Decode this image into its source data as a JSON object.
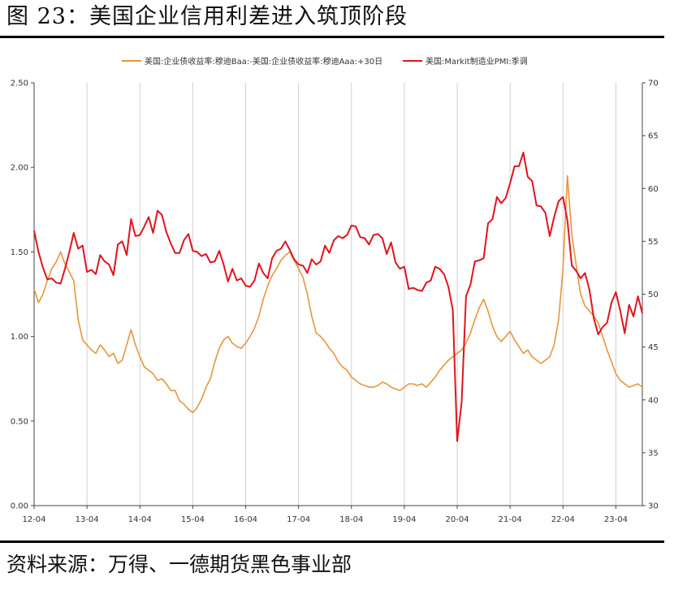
{
  "header": {
    "title": "图 23：美国企业信用利差进入筑顶阶段"
  },
  "footer": {
    "source": "资料来源：万得、一德期货黑色事业部"
  },
  "colors": {
    "spread": "#E8953A",
    "pmi": "#E0141E",
    "grid": "#D0D0D0",
    "axis": "#444444"
  },
  "chart_data": {
    "type": "line",
    "title": "",
    "legend_position": "top",
    "x_ticks": [
      "12-04",
      "13-04",
      "14-04",
      "15-04",
      "16-04",
      "17-04",
      "18-04",
      "19-04",
      "20-04",
      "21-04",
      "22-04",
      "23-04"
    ],
    "x_range": [
      "2012-04",
      "2023-10"
    ],
    "y_left": {
      "range": [
        0.0,
        2.5
      ],
      "ticks": [
        "0.00",
        "0.50",
        "1.00",
        "1.50",
        "2.00",
        "2.50"
      ]
    },
    "y_right": {
      "range": [
        30,
        70
      ],
      "ticks": [
        "30",
        "35",
        "40",
        "45",
        "50",
        "55",
        "60",
        "65",
        "70"
      ]
    },
    "grid": "vertical",
    "series": [
      {
        "name": "美国:企业债收益率:穆迪Baa:-美国:企业债收益率:穆迪Aaa:+30日",
        "axis": "left",
        "points": [
          [
            "2012-04",
            1.28
          ],
          [
            "2012-05",
            1.2
          ],
          [
            "2012-06",
            1.25
          ],
          [
            "2012-07",
            1.33
          ],
          [
            "2012-08",
            1.4
          ],
          [
            "2012-09",
            1.44
          ],
          [
            "2012-10",
            1.5
          ],
          [
            "2012-11",
            1.43
          ],
          [
            "2012-12",
            1.38
          ],
          [
            "2013-01",
            1.33
          ],
          [
            "2013-02",
            1.1
          ],
          [
            "2013-03",
            0.98
          ],
          [
            "2013-04",
            0.95
          ],
          [
            "2013-05",
            0.92
          ],
          [
            "2013-06",
            0.9
          ],
          [
            "2013-07",
            0.95
          ],
          [
            "2013-08",
            0.92
          ],
          [
            "2013-09",
            0.88
          ],
          [
            "2013-10",
            0.9
          ],
          [
            "2013-11",
            0.84
          ],
          [
            "2013-12",
            0.86
          ],
          [
            "2014-01",
            0.95
          ],
          [
            "2014-02",
            1.04
          ],
          [
            "2014-03",
            0.95
          ],
          [
            "2014-04",
            0.88
          ],
          [
            "2014-05",
            0.82
          ],
          [
            "2014-06",
            0.8
          ],
          [
            "2014-07",
            0.78
          ],
          [
            "2014-08",
            0.74
          ],
          [
            "2014-09",
            0.75
          ],
          [
            "2014-10",
            0.72
          ],
          [
            "2014-11",
            0.68
          ],
          [
            "2014-12",
            0.68
          ],
          [
            "2015-01",
            0.62
          ],
          [
            "2015-02",
            0.6
          ],
          [
            "2015-03",
            0.57
          ],
          [
            "2015-04",
            0.55
          ],
          [
            "2015-05",
            0.58
          ],
          [
            "2015-06",
            0.63
          ],
          [
            "2015-07",
            0.7
          ],
          [
            "2015-08",
            0.75
          ],
          [
            "2015-09",
            0.85
          ],
          [
            "2015-10",
            0.93
          ],
          [
            "2015-11",
            0.98
          ],
          [
            "2015-12",
            1.0
          ],
          [
            "2016-01",
            0.96
          ],
          [
            "2016-02",
            0.94
          ],
          [
            "2016-03",
            0.93
          ],
          [
            "2016-04",
            0.96
          ],
          [
            "2016-05",
            1.0
          ],
          [
            "2016-06",
            1.05
          ],
          [
            "2016-07",
            1.12
          ],
          [
            "2016-08",
            1.22
          ],
          [
            "2016-09",
            1.3
          ],
          [
            "2016-10",
            1.36
          ],
          [
            "2016-11",
            1.4
          ],
          [
            "2016-12",
            1.45
          ],
          [
            "2017-01",
            1.48
          ],
          [
            "2017-02",
            1.5
          ],
          [
            "2017-03",
            1.45
          ],
          [
            "2017-04",
            1.4
          ],
          [
            "2017-05",
            1.35
          ],
          [
            "2017-06",
            1.25
          ],
          [
            "2017-07",
            1.12
          ],
          [
            "2017-08",
            1.02
          ],
          [
            "2017-09",
            1.0
          ],
          [
            "2017-10",
            0.97
          ],
          [
            "2017-11",
            0.93
          ],
          [
            "2017-12",
            0.9
          ],
          [
            "2018-01",
            0.85
          ],
          [
            "2018-02",
            0.82
          ],
          [
            "2018-03",
            0.8
          ],
          [
            "2018-04",
            0.76
          ],
          [
            "2018-05",
            0.74
          ],
          [
            "2018-06",
            0.72
          ],
          [
            "2018-07",
            0.71
          ],
          [
            "2018-08",
            0.7
          ],
          [
            "2018-09",
            0.7
          ],
          [
            "2018-10",
            0.71
          ],
          [
            "2018-11",
            0.73
          ],
          [
            "2018-12",
            0.72
          ],
          [
            "2019-01",
            0.7
          ],
          [
            "2019-02",
            0.69
          ],
          [
            "2019-03",
            0.68
          ],
          [
            "2019-04",
            0.7
          ],
          [
            "2019-05",
            0.72
          ],
          [
            "2019-06",
            0.72
          ],
          [
            "2019-07",
            0.71
          ],
          [
            "2019-08",
            0.72
          ],
          [
            "2019-09",
            0.7
          ],
          [
            "2019-10",
            0.73
          ],
          [
            "2019-11",
            0.76
          ],
          [
            "2019-12",
            0.8
          ],
          [
            "2020-01",
            0.83
          ],
          [
            "2020-02",
            0.86
          ],
          [
            "2020-03",
            0.88
          ],
          [
            "2020-04",
            0.9
          ],
          [
            "2020-05",
            0.92
          ],
          [
            "2020-06",
            0.96
          ],
          [
            "2020-07",
            1.02
          ],
          [
            "2020-08",
            1.1
          ],
          [
            "2020-09",
            1.17
          ],
          [
            "2020-10",
            1.22
          ],
          [
            "2020-11",
            1.15
          ],
          [
            "2020-12",
            1.06
          ],
          [
            "2021-01",
            1.0
          ],
          [
            "2021-02",
            0.97
          ],
          [
            "2021-03",
            1.0
          ],
          [
            "2021-04",
            1.03
          ],
          [
            "2021-05",
            0.98
          ],
          [
            "2021-06",
            0.94
          ],
          [
            "2021-07",
            0.9
          ],
          [
            "2021-08",
            0.92
          ],
          [
            "2021-09",
            0.88
          ],
          [
            "2021-10",
            0.86
          ],
          [
            "2021-11",
            0.84
          ],
          [
            "2021-12",
            0.86
          ],
          [
            "2022-01",
            0.88
          ],
          [
            "2022-02",
            0.95
          ],
          [
            "2022-03",
            1.1
          ],
          [
            "2022-04",
            1.4
          ],
          [
            "2022-05",
            1.95
          ],
          [
            "2022-06",
            1.6
          ],
          [
            "2022-07",
            1.42
          ],
          [
            "2022-08",
            1.25
          ],
          [
            "2022-09",
            1.18
          ],
          [
            "2022-10",
            1.15
          ],
          [
            "2022-11",
            1.12
          ],
          [
            "2022-12",
            1.08
          ],
          [
            "2023-01",
            1.0
          ],
          [
            "2023-02",
            0.92
          ],
          [
            "2023-03",
            0.85
          ],
          [
            "2023-04",
            0.78
          ],
          [
            "2023-05",
            0.74
          ],
          [
            "2023-06",
            0.72
          ],
          [
            "2023-07",
            0.7
          ],
          [
            "2023-08",
            0.71
          ],
          [
            "2023-09",
            0.72
          ],
          [
            "2023-10",
            0.7
          ]
        ]
      },
      {
        "name": "美国:Markit制造业PMI:季调",
        "axis": "right",
        "points": [
          [
            "2012-04",
            56.0
          ],
          [
            "2012-05",
            54.0
          ],
          [
            "2012-06",
            52.5
          ],
          [
            "2012-07",
            51.4
          ],
          [
            "2012-08",
            51.5
          ],
          [
            "2012-09",
            51.1
          ],
          [
            "2012-10",
            51.0
          ],
          [
            "2012-11",
            52.4
          ],
          [
            "2012-12",
            54.0
          ],
          [
            "2013-01",
            55.8
          ],
          [
            "2013-02",
            54.3
          ],
          [
            "2013-03",
            54.6
          ],
          [
            "2013-04",
            52.1
          ],
          [
            "2013-05",
            52.3
          ],
          [
            "2013-06",
            51.9
          ],
          [
            "2013-07",
            53.7
          ],
          [
            "2013-08",
            53.1
          ],
          [
            "2013-09",
            52.8
          ],
          [
            "2013-10",
            51.8
          ],
          [
            "2013-11",
            54.7
          ],
          [
            "2013-12",
            55.0
          ],
          [
            "2014-01",
            53.7
          ],
          [
            "2014-02",
            57.1
          ],
          [
            "2014-03",
            55.5
          ],
          [
            "2014-04",
            55.6
          ],
          [
            "2014-05",
            56.4
          ],
          [
            "2014-06",
            57.3
          ],
          [
            "2014-07",
            55.8
          ],
          [
            "2014-08",
            57.9
          ],
          [
            "2014-09",
            57.5
          ],
          [
            "2014-10",
            55.9
          ],
          [
            "2014-11",
            54.8
          ],
          [
            "2014-12",
            53.9
          ],
          [
            "2015-01",
            53.9
          ],
          [
            "2015-02",
            55.1
          ],
          [
            "2015-03",
            55.7
          ],
          [
            "2015-04",
            54.1
          ],
          [
            "2015-05",
            54.0
          ],
          [
            "2015-06",
            53.6
          ],
          [
            "2015-07",
            53.8
          ],
          [
            "2015-08",
            53.0
          ],
          [
            "2015-09",
            53.1
          ],
          [
            "2015-10",
            54.1
          ],
          [
            "2015-11",
            52.8
          ],
          [
            "2015-12",
            51.2
          ],
          [
            "2016-01",
            52.4
          ],
          [
            "2016-02",
            51.3
          ],
          [
            "2016-03",
            51.5
          ],
          [
            "2016-04",
            50.8
          ],
          [
            "2016-05",
            50.7
          ],
          [
            "2016-06",
            51.3
          ],
          [
            "2016-07",
            52.9
          ],
          [
            "2016-08",
            52.0
          ],
          [
            "2016-09",
            51.5
          ],
          [
            "2016-10",
            53.4
          ],
          [
            "2016-11",
            54.1
          ],
          [
            "2016-12",
            54.3
          ],
          [
            "2017-01",
            55.0
          ],
          [
            "2017-02",
            54.2
          ],
          [
            "2017-03",
            53.3
          ],
          [
            "2017-04",
            52.8
          ],
          [
            "2017-05",
            52.7
          ],
          [
            "2017-06",
            52.0
          ],
          [
            "2017-07",
            53.3
          ],
          [
            "2017-08",
            52.8
          ],
          [
            "2017-09",
            53.1
          ],
          [
            "2017-10",
            54.6
          ],
          [
            "2017-11",
            53.9
          ],
          [
            "2017-12",
            55.1
          ],
          [
            "2018-01",
            55.5
          ],
          [
            "2018-02",
            55.3
          ],
          [
            "2018-03",
            55.6
          ],
          [
            "2018-04",
            56.5
          ],
          [
            "2018-05",
            56.4
          ],
          [
            "2018-06",
            55.4
          ],
          [
            "2018-07",
            55.3
          ],
          [
            "2018-08",
            54.7
          ],
          [
            "2018-09",
            55.6
          ],
          [
            "2018-10",
            55.7
          ],
          [
            "2018-11",
            55.3
          ],
          [
            "2018-12",
            53.8
          ],
          [
            "2019-01",
            54.9
          ],
          [
            "2019-02",
            53.0
          ],
          [
            "2019-03",
            52.4
          ],
          [
            "2019-04",
            52.6
          ],
          [
            "2019-05",
            50.5
          ],
          [
            "2019-06",
            50.6
          ],
          [
            "2019-07",
            50.4
          ],
          [
            "2019-08",
            50.3
          ],
          [
            "2019-09",
            51.1
          ],
          [
            "2019-10",
            51.3
          ],
          [
            "2019-11",
            52.6
          ],
          [
            "2019-12",
            52.4
          ],
          [
            "2020-01",
            51.9
          ],
          [
            "2020-02",
            50.7
          ],
          [
            "2020-03",
            48.5
          ],
          [
            "2020-04",
            36.1
          ],
          [
            "2020-05",
            39.8
          ],
          [
            "2020-06",
            49.8
          ],
          [
            "2020-07",
            50.9
          ],
          [
            "2020-08",
            53.1
          ],
          [
            "2020-09",
            53.2
          ],
          [
            "2020-10",
            53.4
          ],
          [
            "2020-11",
            56.7
          ],
          [
            "2020-12",
            57.1
          ],
          [
            "2021-01",
            59.2
          ],
          [
            "2021-02",
            58.6
          ],
          [
            "2021-03",
            59.1
          ],
          [
            "2021-04",
            60.5
          ],
          [
            "2021-05",
            62.1
          ],
          [
            "2021-06",
            62.1
          ],
          [
            "2021-07",
            63.4
          ],
          [
            "2021-08",
            61.1
          ],
          [
            "2021-09",
            60.7
          ],
          [
            "2021-10",
            58.4
          ],
          [
            "2021-11",
            58.3
          ],
          [
            "2021-12",
            57.7
          ],
          [
            "2022-01",
            55.5
          ],
          [
            "2022-02",
            57.3
          ],
          [
            "2022-03",
            58.8
          ],
          [
            "2022-04",
            59.2
          ],
          [
            "2022-05",
            57.0
          ],
          [
            "2022-06",
            52.7
          ],
          [
            "2022-07",
            52.2
          ],
          [
            "2022-08",
            51.5
          ],
          [
            "2022-09",
            52.0
          ],
          [
            "2022-10",
            50.4
          ],
          [
            "2022-11",
            47.7
          ],
          [
            "2022-12",
            46.2
          ],
          [
            "2023-01",
            46.9
          ],
          [
            "2023-02",
            47.3
          ],
          [
            "2023-03",
            49.2
          ],
          [
            "2023-04",
            50.2
          ],
          [
            "2023-05",
            48.4
          ],
          [
            "2023-06",
            46.3
          ],
          [
            "2023-07",
            49.0
          ],
          [
            "2023-08",
            47.9
          ],
          [
            "2023-09",
            49.8
          ],
          [
            "2023-10",
            48.2
          ]
        ]
      }
    ]
  }
}
